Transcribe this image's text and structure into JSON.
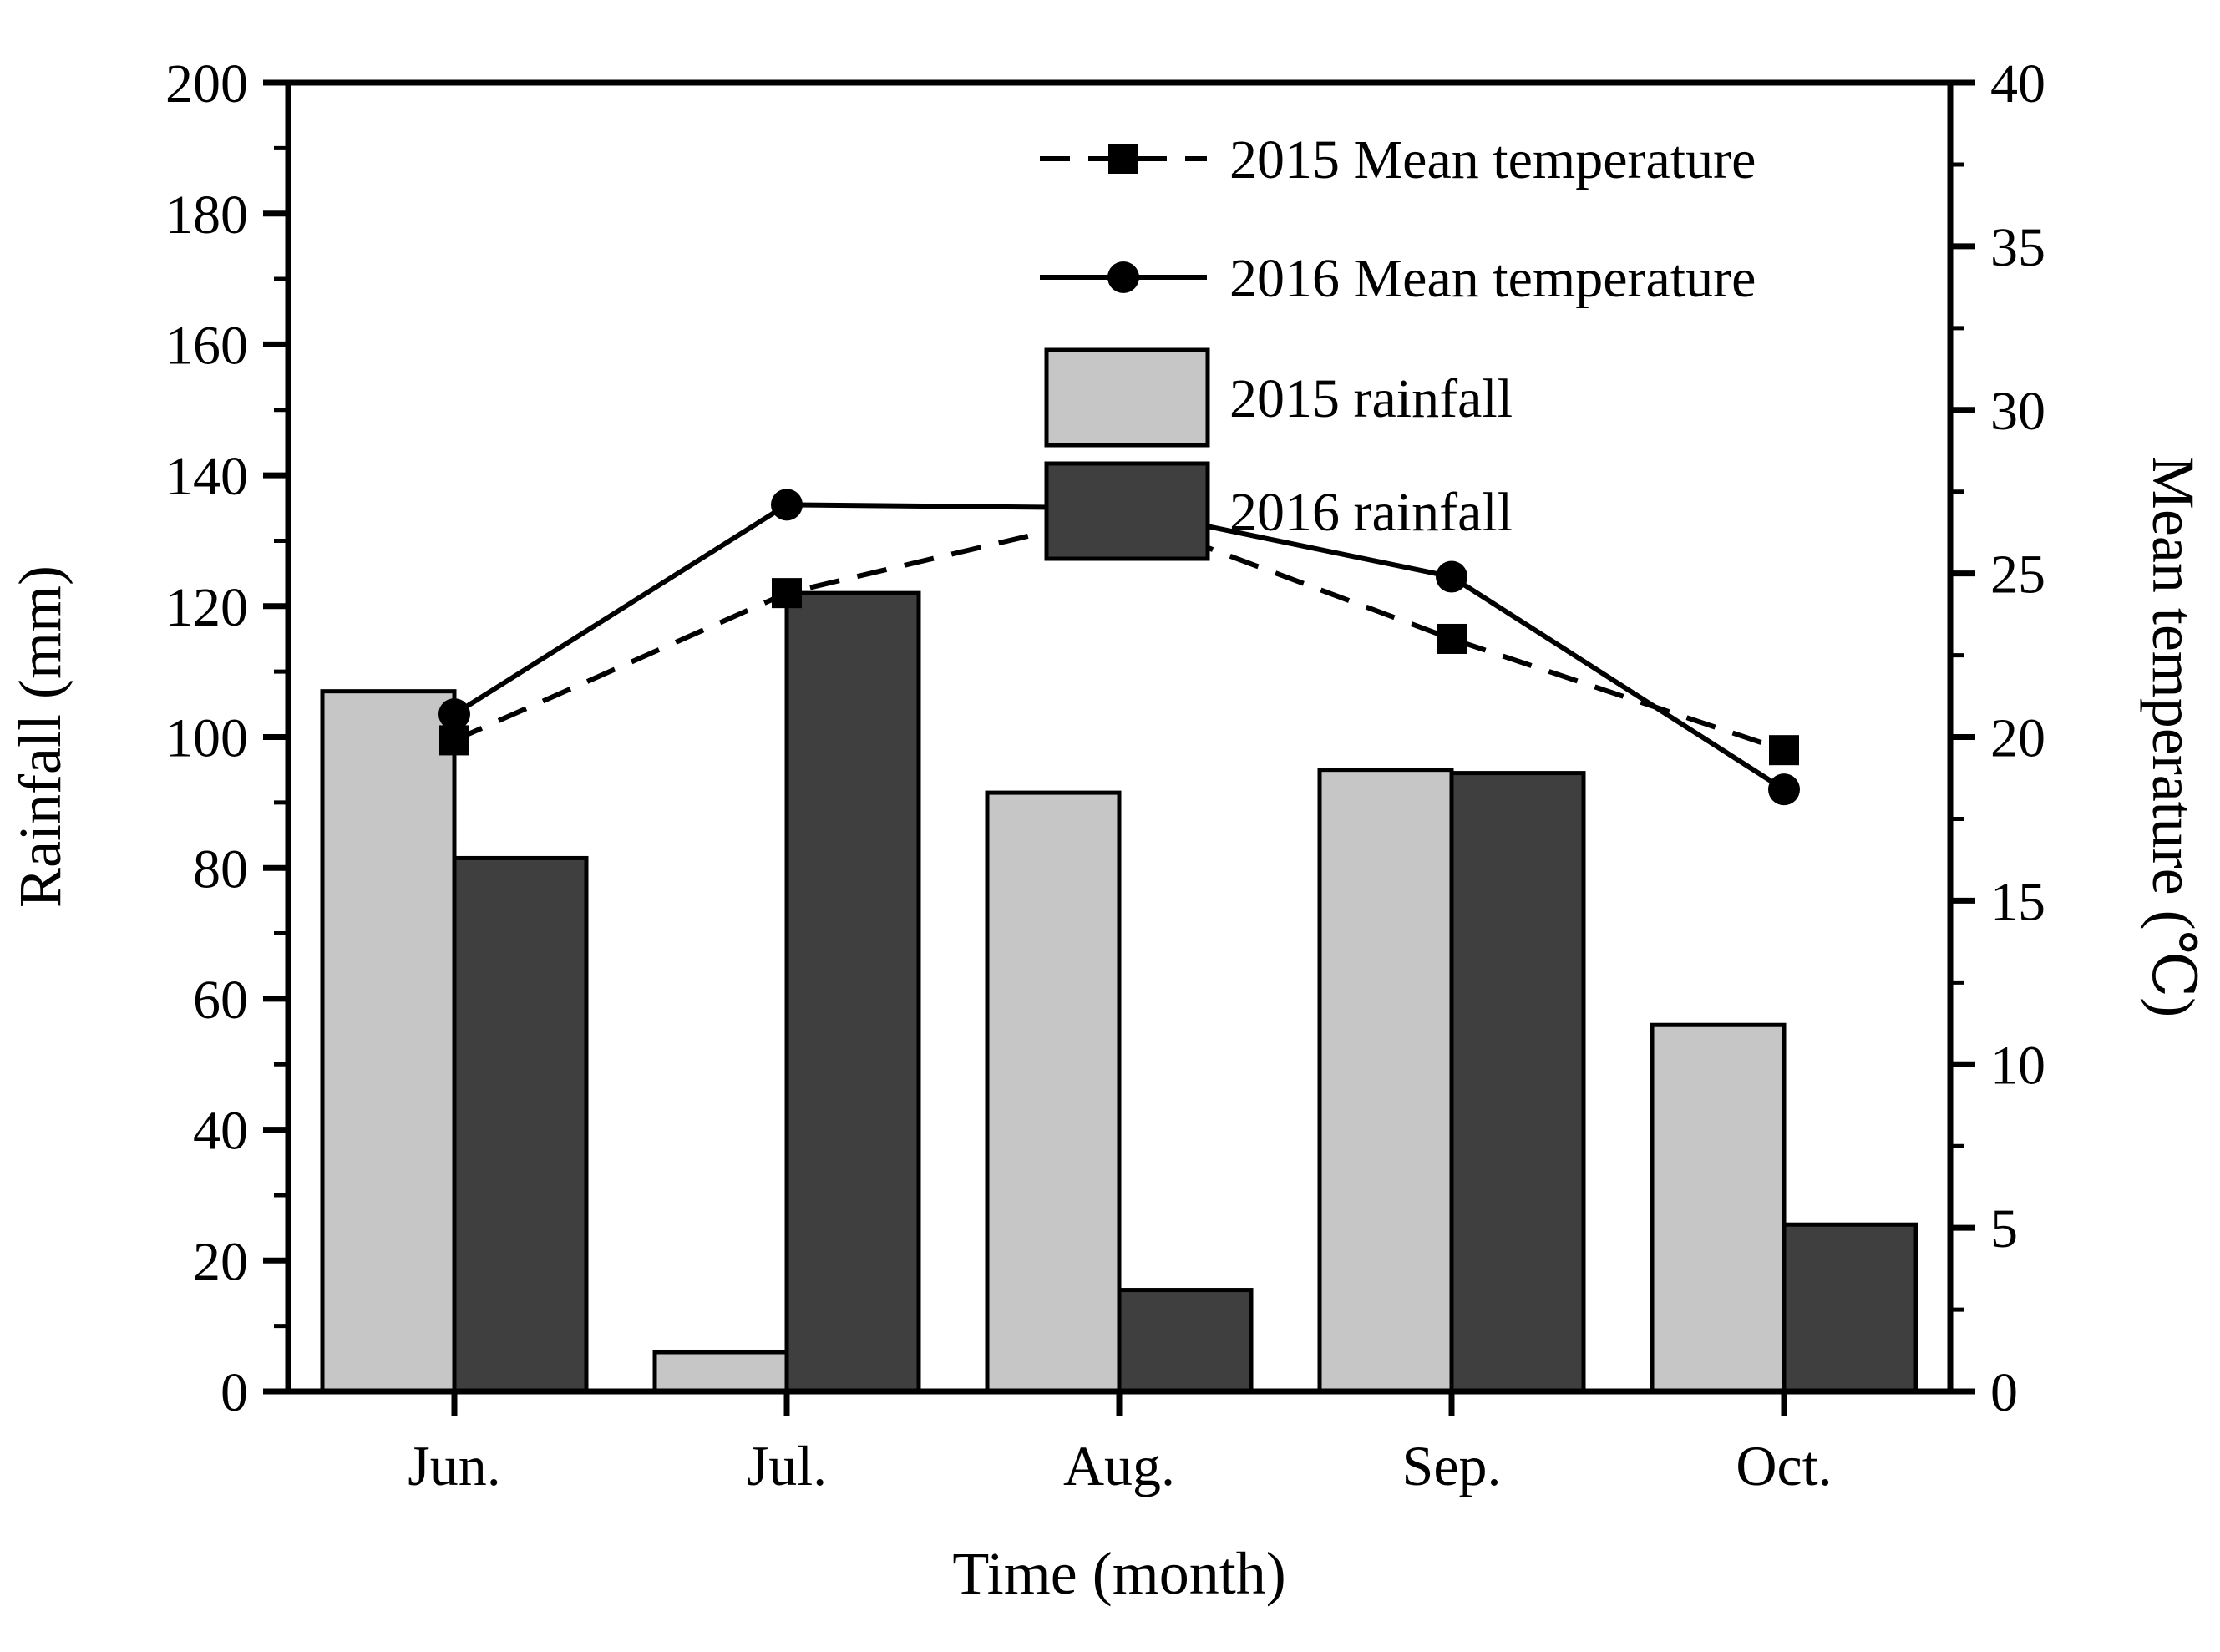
{
  "chart_data": {
    "type": "bar+line combo",
    "categories": [
      "Jun.",
      "Jul.",
      "Aug.",
      "Sep.",
      "Oct."
    ],
    "x_title": "Time (month)",
    "y_left": {
      "title": "Rainfall (mm)",
      "min": 0,
      "max": 200,
      "major_step": 20,
      "tick_labels": [
        "0",
        "20",
        "40",
        "60",
        "80",
        "100",
        "120",
        "140",
        "160",
        "180",
        "200"
      ]
    },
    "y_right": {
      "title": "Mean temperature (℃)",
      "min": 0,
      "max": 40,
      "major_step": 5,
      "tick_labels": [
        "0",
        "5",
        "10",
        "15",
        "20",
        "25",
        "30",
        "35",
        "40"
      ]
    },
    "series": [
      {
        "name": "2015 Mean temperature",
        "type": "line",
        "style": "dashed",
        "marker": "square",
        "axis": "right",
        "color": "#000000",
        "values": [
          19.9,
          24.4,
          26.8,
          23.0,
          19.6
        ]
      },
      {
        "name": "2016 Mean temperature",
        "type": "line",
        "style": "solid",
        "marker": "circle",
        "axis": "right",
        "color": "#000000",
        "values": [
          20.7,
          27.1,
          27.0,
          24.9,
          18.4
        ]
      },
      {
        "name": "2015 rainfall",
        "type": "bar",
        "axis": "left",
        "color": "#c6c6c6",
        "values": [
          107,
          6,
          91.5,
          95,
          56
        ]
      },
      {
        "name": "2016 rainfall",
        "type": "bar",
        "axis": "left",
        "color": "#3f3f3f",
        "values": [
          81.5,
          122,
          15.5,
          94.5,
          25.5
        ]
      }
    ],
    "legend_position": "inside upper center-right",
    "grid": false
  },
  "colors": {
    "bar_2015": "#c6c6c6",
    "bar_2016": "#3f3f3f",
    "stroke": "#000000",
    "background": "#ffffff"
  }
}
